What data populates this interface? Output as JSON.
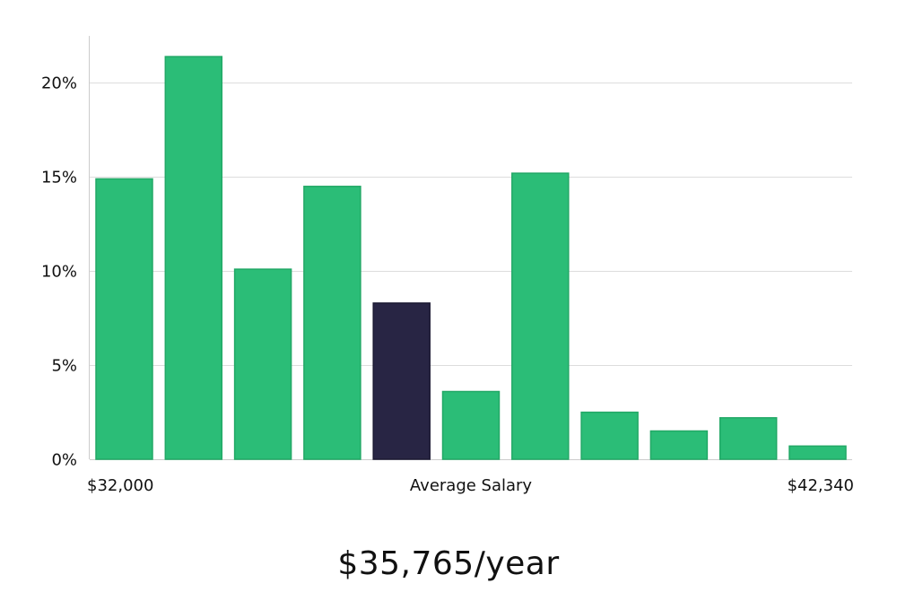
{
  "chart_data": {
    "type": "bar",
    "title": "",
    "xlabel": "",
    "ylabel": "",
    "x_labels": {
      "left": "$32,000",
      "center": "Average Salary",
      "right": "$42,340"
    },
    "yticks": [
      0,
      5,
      10,
      15,
      20
    ],
    "ytick_labels": [
      "0%",
      "5%",
      "10%",
      "15%",
      "20%"
    ],
    "ylim": [
      0,
      22.5
    ],
    "values": [
      14.9,
      21.4,
      10.1,
      14.5,
      8.3,
      3.6,
      15.2,
      2.5,
      1.5,
      2.2,
      0.7
    ],
    "highlight_index": 4,
    "colors": {
      "bar": "#2bbd77",
      "bar_stroke": "#22a866",
      "highlight": "#282544",
      "grid": "#dddddd",
      "axis": "#cccccc"
    },
    "grid": true
  },
  "salary": {
    "value": "$35,765/year"
  }
}
